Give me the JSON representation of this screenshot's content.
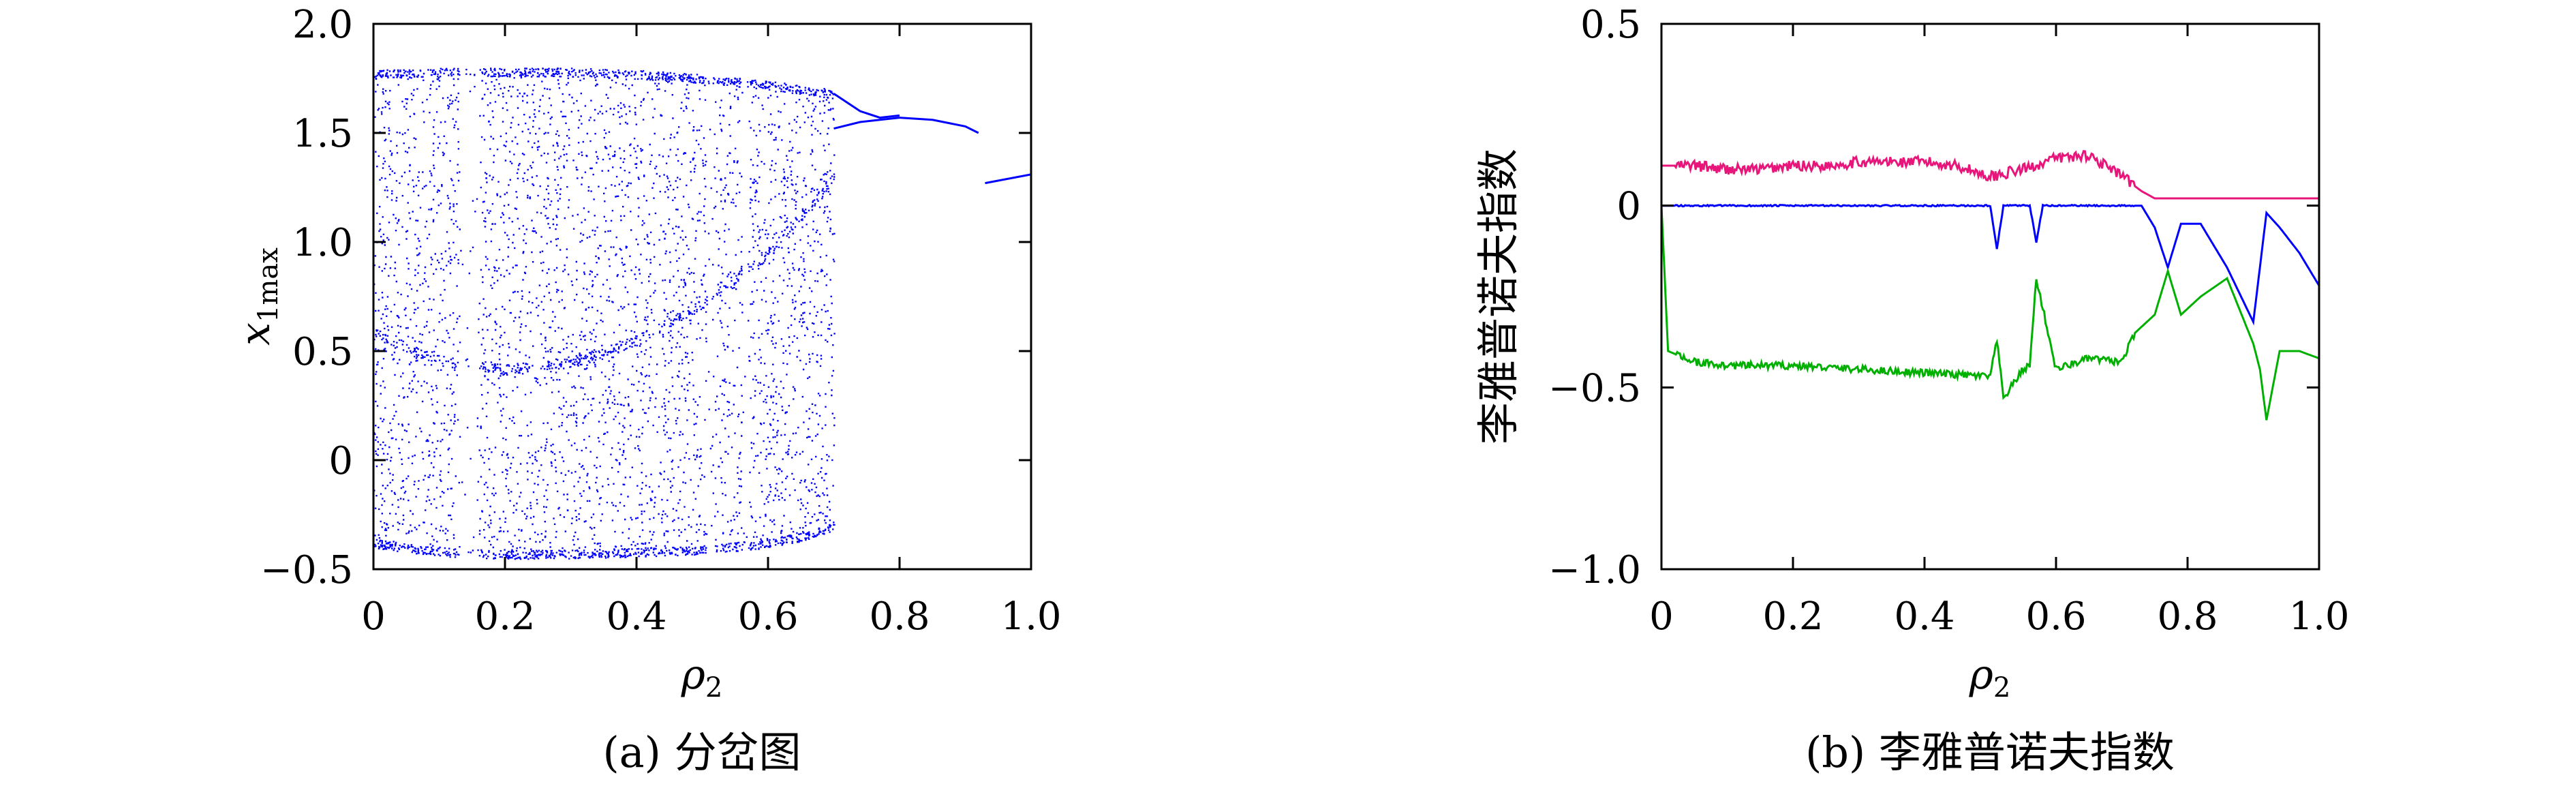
{
  "chart_data": [
    {
      "id": "a",
      "type": "scatter",
      "caption": "(a) 分岔图",
      "xlabel": "ρ2",
      "xlabel_main": "ρ",
      "xlabel_sub": "2",
      "ylabel": "x1max",
      "ylabel_main": "x",
      "ylabel_sub": "1max",
      "xlim": [
        0,
        1.0
      ],
      "ylim": [
        -0.5,
        2.0
      ],
      "xticks": [
        0,
        0.2,
        0.4,
        0.6,
        0.8,
        1.0
      ],
      "xticklabels": [
        "0",
        "0.2",
        "0.4",
        "0.6",
        "0.8",
        "1.0"
      ],
      "yticks": [
        -0.5,
        0,
        0.5,
        1.0,
        1.5,
        2.0
      ],
      "yticklabels": [
        "−0.5",
        "0",
        "0.5",
        "1.0",
        "1.5",
        "2.0"
      ],
      "color": "#0000ff",
      "grid": false,
      "legend": "none",
      "envelope": {
        "upper": [
          [
            0,
            1.79
          ],
          [
            0.1,
            1.8
          ],
          [
            0.2,
            1.8
          ],
          [
            0.3,
            1.8
          ],
          [
            0.4,
            1.79
          ],
          [
            0.5,
            1.77
          ],
          [
            0.6,
            1.74
          ],
          [
            0.7,
            1.7
          ],
          [
            0.8,
            1.64
          ],
          [
            0.9,
            1.56
          ]
        ],
        "lower": [
          [
            0,
            -0.4
          ],
          [
            0.1,
            -0.44
          ],
          [
            0.2,
            -0.45
          ],
          [
            0.3,
            -0.45
          ],
          [
            0.4,
            -0.44
          ],
          [
            0.5,
            -0.43
          ],
          [
            0.6,
            -0.4
          ],
          [
            0.65,
            -0.37
          ],
          [
            0.7,
            -0.32
          ]
        ],
        "band_top": [
          [
            0,
            0.58
          ],
          [
            0.1,
            0.46
          ],
          [
            0.2,
            0.42
          ],
          [
            0.3,
            0.45
          ],
          [
            0.4,
            0.55
          ],
          [
            0.5,
            0.72
          ],
          [
            0.6,
            0.95
          ],
          [
            0.7,
            1.3
          ]
        ]
      },
      "periodic_branches": [
        {
          "x": [
            0.7,
            0.74,
            0.77,
            0.8
          ],
          "y": [
            1.68,
            1.6,
            1.57,
            1.58
          ]
        },
        {
          "x": [
            0.7,
            0.74,
            0.77,
            0.8
          ],
          "y": [
            1.52,
            1.55,
            1.56,
            1.57
          ]
        },
        {
          "x": [
            0.8,
            0.85,
            0.9,
            0.92
          ],
          "y": [
            1.57,
            1.56,
            1.53,
            1.5
          ]
        },
        {
          "x": [
            0.93,
            1.0
          ],
          "y": [
            1.27,
            1.31
          ]
        }
      ],
      "windows": [
        [
          0.13,
          0.16
        ],
        [
          0.505,
          0.515
        ],
        [
          0.56,
          0.57
        ]
      ]
    },
    {
      "id": "b",
      "type": "line",
      "caption": "(b) 李雅普诺夫指数",
      "xlabel": "ρ2",
      "xlabel_main": "ρ",
      "xlabel_sub": "2",
      "ylabel": "李雅普诺夫指数",
      "xlim": [
        0,
        1.0
      ],
      "ylim": [
        -1.0,
        0.5
      ],
      "xticks": [
        0,
        0.2,
        0.4,
        0.6,
        0.8,
        1.0
      ],
      "xticklabels": [
        "0",
        "0.2",
        "0.4",
        "0.6",
        "0.8",
        "1.0"
      ],
      "yticks": [
        -1.0,
        -0.5,
        0,
        0.5
      ],
      "yticklabels": [
        "−1.0",
        "−0.5",
        "0",
        "0.5"
      ],
      "grid": false,
      "legend": "none",
      "series": [
        {
          "color": "#e8157a",
          "x": [
            0,
            0.05,
            0.1,
            0.15,
            0.2,
            0.25,
            0.3,
            0.35,
            0.4,
            0.45,
            0.5,
            0.55,
            0.6,
            0.65,
            0.7,
            0.73,
            0.75,
            0.8,
            0.85,
            0.9,
            0.95,
            1.0
          ],
          "y": [
            0.11,
            0.11,
            0.1,
            0.1,
            0.11,
            0.11,
            0.12,
            0.12,
            0.12,
            0.11,
            0.08,
            0.1,
            0.13,
            0.14,
            0.08,
            0.04,
            0.02,
            0.02,
            0.02,
            0.02,
            0.02,
            0.02
          ]
        },
        {
          "color": "#0000ff",
          "x": [
            0,
            0.1,
            0.2,
            0.3,
            0.4,
            0.5,
            0.51,
            0.52,
            0.56,
            0.57,
            0.58,
            0.7,
            0.73,
            0.75,
            0.77,
            0.79,
            0.82,
            0.86,
            0.9,
            0.92,
            0.94,
            0.97,
            1.0
          ],
          "y": [
            0,
            0,
            0,
            0,
            0,
            0,
            -0.12,
            0,
            0,
            -0.1,
            0,
            0,
            0,
            -0.06,
            -0.17,
            -0.05,
            -0.05,
            -0.17,
            -0.32,
            -0.02,
            -0.06,
            -0.13,
            -0.22
          ]
        },
        {
          "color": "#00b000",
          "x": [
            0,
            0.01,
            0.05,
            0.1,
            0.2,
            0.3,
            0.4,
            0.5,
            0.51,
            0.52,
            0.55,
            0.56,
            0.57,
            0.6,
            0.65,
            0.7,
            0.72,
            0.75,
            0.77,
            0.79,
            0.82,
            0.86,
            0.9,
            0.91,
            0.92,
            0.94,
            0.97,
            1.0
          ],
          "y": [
            0,
            -0.4,
            -0.43,
            -0.44,
            -0.44,
            -0.45,
            -0.46,
            -0.47,
            -0.37,
            -0.53,
            -0.45,
            -0.44,
            -0.2,
            -0.45,
            -0.42,
            -0.43,
            -0.35,
            -0.3,
            -0.18,
            -0.3,
            -0.25,
            -0.2,
            -0.38,
            -0.45,
            -0.59,
            -0.4,
            -0.4,
            -0.42
          ]
        }
      ]
    }
  ]
}
